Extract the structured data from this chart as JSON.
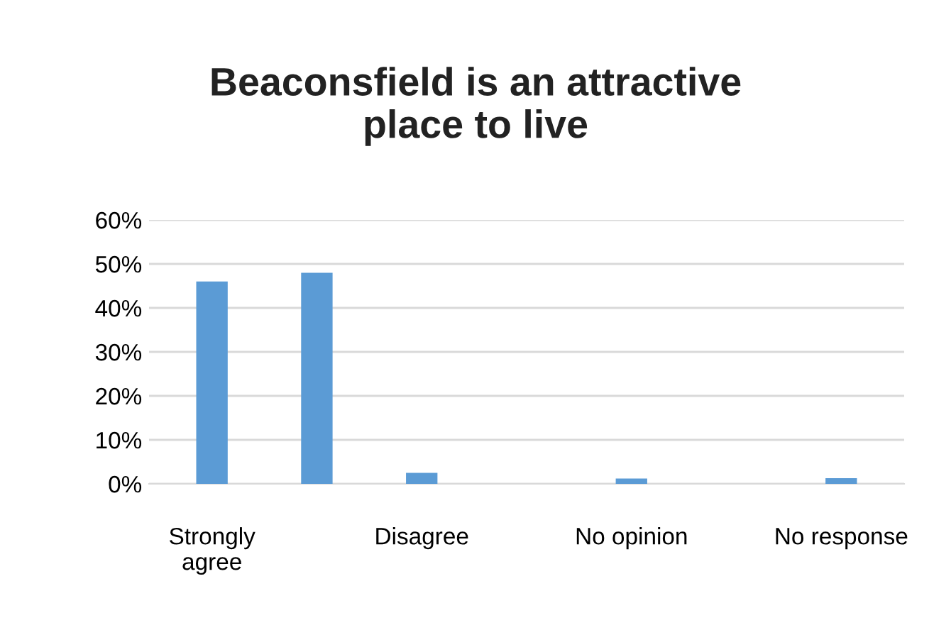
{
  "chart_data": {
    "type": "bar",
    "title": "Beaconsfield is an attractive\nplace to live",
    "categories": [
      "Strongly\nagree",
      null,
      "Disagree",
      null,
      "No opinion",
      null,
      "No response"
    ],
    "values": [
      46,
      48,
      2.5,
      0,
      1.2,
      0,
      1.3
    ],
    "color": "#5b9bd5",
    "ylim": [
      0,
      60
    ],
    "yticks": [
      {
        "value": 0,
        "label": "0%"
      },
      {
        "value": 10,
        "label": "10%"
      },
      {
        "value": 20,
        "label": "20%"
      },
      {
        "value": 30,
        "label": "30%"
      },
      {
        "value": 40,
        "label": "40%"
      },
      {
        "value": 50,
        "label": "50%"
      },
      {
        "value": 60,
        "label": "60%"
      }
    ],
    "grid": "y"
  }
}
